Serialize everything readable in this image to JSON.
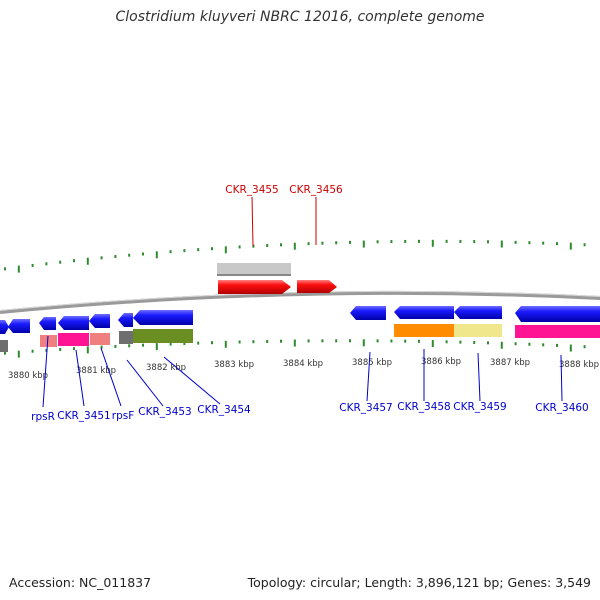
{
  "header": {
    "title": "Clostridium kluyveri NBRC 12016, complete genome"
  },
  "footer": {
    "accession": "Accession: NC_011837",
    "summary": "Topology: circular; Length: 3,896,121 bp; Genes: 3,549"
  },
  "scale_labels": [
    "3880 kbp",
    "3881 kbp",
    "3882 kbp",
    "3883 kbp",
    "3884 kbp",
    "3885 kbp",
    "3886 kbp",
    "3887 kbp",
    "3888 kbp"
  ],
  "genes_top": [
    "CKR_3455",
    "CKR_3456"
  ],
  "genes_bottom": [
    "rpsR",
    "CKR_3451",
    "rpsF",
    "CKR_3453",
    "CKR_3454",
    "CKR_3457",
    "CKR_3458",
    "CKR_3459",
    "CKR_3460"
  ],
  "colors": {
    "forward_strand": "#ff0000",
    "reverse_strand": "#0000ee",
    "tick": "#2e8b2e",
    "backbone": "#808080",
    "label_top": "#cc0000",
    "label_bottom": "#0000cc"
  }
}
